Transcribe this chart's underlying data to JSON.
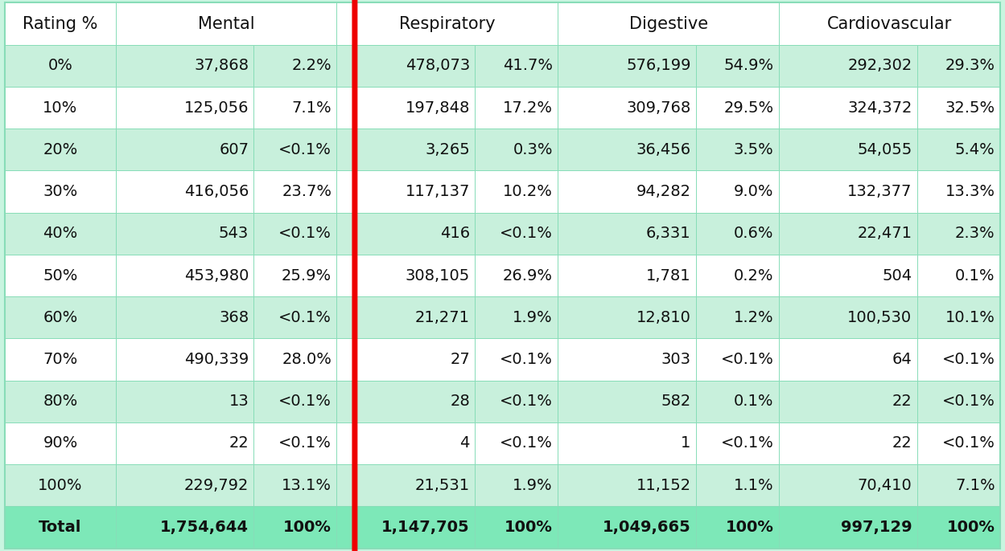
{
  "rows": [
    [
      "0%",
      "37,868",
      "2.2%",
      "478,073",
      "41.7%",
      "576,199",
      "54.9%",
      "292,302",
      "29.3%"
    ],
    [
      "10%",
      "125,056",
      "7.1%",
      "197,848",
      "17.2%",
      "309,768",
      "29.5%",
      "324,372",
      "32.5%"
    ],
    [
      "20%",
      "607",
      "<0.1%",
      "3,265",
      "0.3%",
      "36,456",
      "3.5%",
      "54,055",
      "5.4%"
    ],
    [
      "30%",
      "416,056",
      "23.7%",
      "117,137",
      "10.2%",
      "94,282",
      "9.0%",
      "132,377",
      "13.3%"
    ],
    [
      "40%",
      "543",
      "<0.1%",
      "416",
      "<0.1%",
      "6,331",
      "0.6%",
      "22,471",
      "2.3%"
    ],
    [
      "50%",
      "453,980",
      "25.9%",
      "308,105",
      "26.9%",
      "1,781",
      "0.2%",
      "504",
      "0.1%"
    ],
    [
      "60%",
      "368",
      "<0.1%",
      "21,271",
      "1.9%",
      "12,810",
      "1.2%",
      "100,530",
      "10.1%"
    ],
    [
      "70%",
      "490,339",
      "28.0%",
      "27",
      "<0.1%",
      "303",
      "<0.1%",
      "64",
      "<0.1%"
    ],
    [
      "80%",
      "13",
      "<0.1%",
      "28",
      "<0.1%",
      "582",
      "0.1%",
      "22",
      "<0.1%"
    ],
    [
      "90%",
      "22",
      "<0.1%",
      "4",
      "<0.1%",
      "1",
      "<0.1%",
      "22",
      "<0.1%"
    ],
    [
      "100%",
      "229,792",
      "13.1%",
      "21,531",
      "1.9%",
      "11,152",
      "1.1%",
      "70,410",
      "7.1%"
    ],
    [
      "Total",
      "1,754,644",
      "100%",
      "1,147,705",
      "100%",
      "1,049,665",
      "100%",
      "997,129",
      "100%"
    ]
  ],
  "header_bg": "#ffffff",
  "cell_bg_even": "#c8f0dc",
  "cell_bg_odd": "#ffffff",
  "total_bg": "#7de8b8",
  "outer_border_color": "#88ddb8",
  "cell_border_color": "#88ddb8",
  "red_border_color": "#ee0000",
  "text_color": "#111111",
  "font_size": 14,
  "header_font_size": 15,
  "outer_bg": "#c8f5e0",
  "fig_w": 12.49,
  "fig_h": 6.86,
  "dpi": 100
}
